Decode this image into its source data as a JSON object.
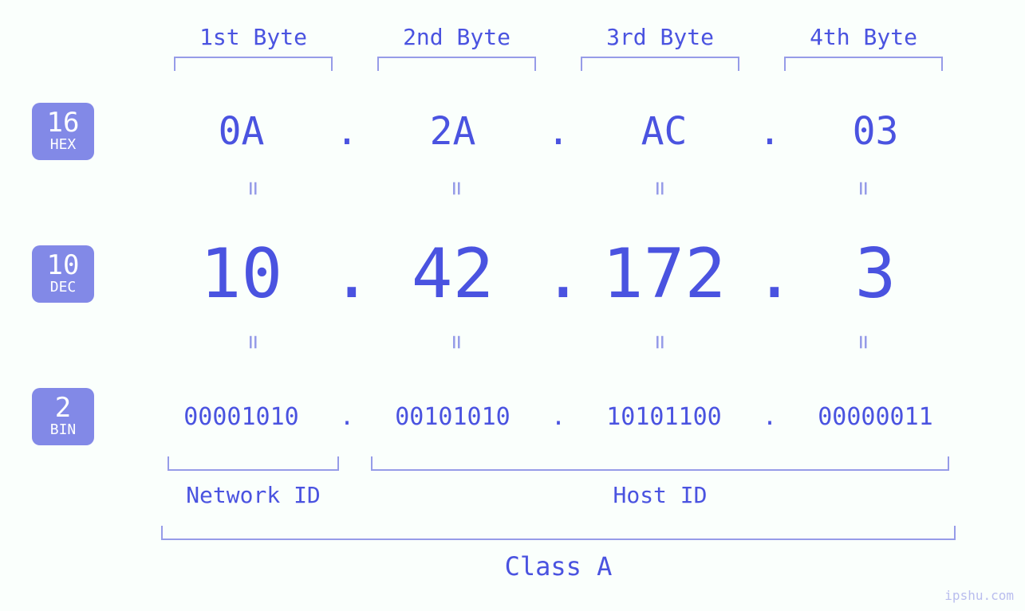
{
  "type": "infographic",
  "colors": {
    "background": "#fafffc",
    "primary": "#4a53e0",
    "primary_light": "#969ce8",
    "badge_bg": "#8289e7",
    "badge_text": "#ffffff"
  },
  "typography": {
    "font_family": "monospace",
    "byte_label_fontsize": 28,
    "hex_fontsize": 48,
    "dec_fontsize": 86,
    "bin_fontsize": 30,
    "badge_num_fontsize": 34,
    "badge_txt_fontsize": 18,
    "class_label_fontsize": 32
  },
  "byte_headers": [
    "1st Byte",
    "2nd Byte",
    "3rd Byte",
    "4th Byte"
  ],
  "bases": {
    "hex": {
      "num": "16",
      "name": "HEX",
      "values": [
        "0A",
        "2A",
        "AC",
        "03"
      ]
    },
    "dec": {
      "num": "10",
      "name": "DEC",
      "values": [
        "10",
        "42",
        "172",
        "3"
      ]
    },
    "bin": {
      "num": "2",
      "name": "BIN",
      "values": [
        "00001010",
        "00101010",
        "10101100",
        "00000011"
      ]
    }
  },
  "separator": ".",
  "equals_glyph": "=",
  "id_labels": {
    "network": "Network ID",
    "host": "Host ID"
  },
  "class_label": "Class A",
  "network_bytes": 1,
  "host_bytes": 3,
  "watermark": "ipshu.com"
}
